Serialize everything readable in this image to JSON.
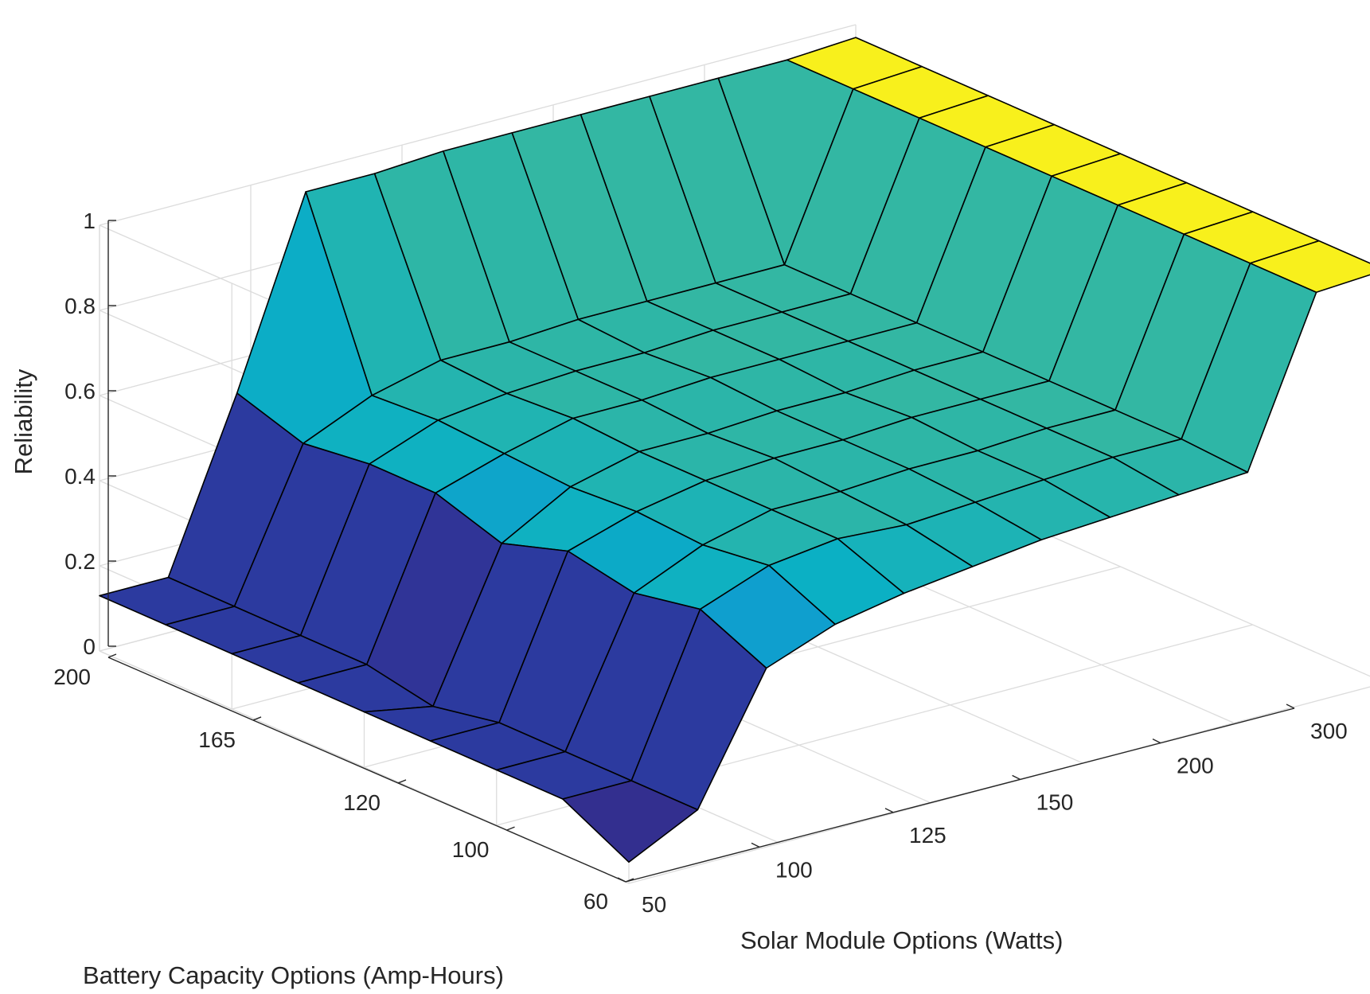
{
  "chart_data": {
    "type": "surface",
    "title": "",
    "xlabel": "Solar Module Options (Watts)",
    "ylabel": "Battery Capacity Options (Amp-Hours)",
    "zlabel": "Reliability",
    "x_ticks": [
      "50",
      "100",
      "125",
      "150",
      "200",
      "300"
    ],
    "y_ticks": [
      "60",
      "100",
      "120",
      "165",
      "200"
    ],
    "z_ticks": [
      "0",
      "0.2",
      "0.4",
      "0.6",
      "0.8",
      "1"
    ],
    "zlim": [
      0,
      1
    ],
    "grid": true,
    "colormap": "parula",
    "z_grid": [
      [
        0.05,
        0.13,
        0.13,
        0.13,
        0.13,
        0.13,
        0.13,
        0.13,
        0.13
      ],
      [
        0.13,
        0.13,
        0.13,
        0.13,
        0.1,
        0.13,
        0.13,
        0.13,
        0.13
      ],
      [
        0.42,
        0.49,
        0.46,
        0.49,
        0.44,
        0.49,
        0.49,
        0.47,
        0.52
      ],
      [
        0.48,
        0.55,
        0.53,
        0.54,
        0.53,
        0.54,
        0.55,
        0.54,
        0.95
      ],
      [
        0.51,
        0.57,
        0.57,
        0.57,
        0.57,
        0.58,
        0.57,
        0.58,
        0.95
      ],
      [
        0.53,
        0.56,
        0.57,
        0.58,
        0.57,
        0.58,
        0.58,
        0.58,
        0.96
      ],
      [
        0.55,
        0.57,
        0.58,
        0.58,
        0.58,
        0.59,
        0.58,
        0.59,
        0.96
      ],
      [
        0.56,
        0.58,
        0.58,
        0.59,
        0.58,
        0.59,
        0.59,
        0.59,
        0.96
      ],
      [
        0.57,
        0.59,
        0.59,
        0.59,
        0.59,
        0.59,
        0.59,
        0.59,
        0.96
      ],
      [
        0.58,
        0.59,
        0.59,
        0.59,
        0.59,
        0.59,
        0.59,
        0.59,
        0.96
      ],
      [
        0.96,
        0.96,
        0.96,
        0.96,
        0.96,
        0.96,
        0.96,
        0.96,
        0.96
      ],
      [
        0.97,
        0.97,
        0.97,
        0.97,
        0.97,
        0.97,
        0.97,
        0.97,
        0.97
      ]
    ]
  }
}
